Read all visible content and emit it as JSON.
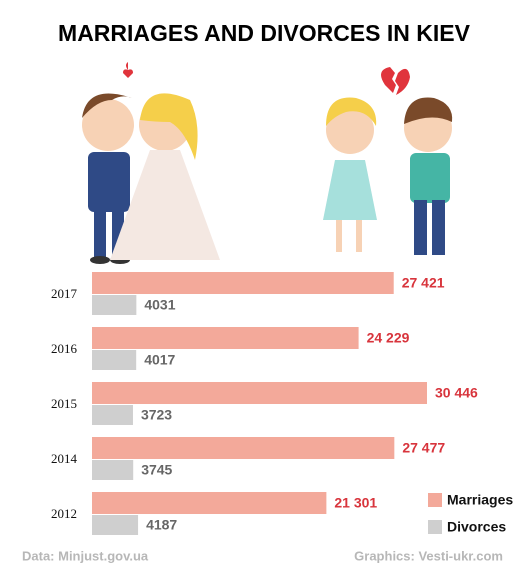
{
  "chart_data": {
    "type": "bar",
    "orientation": "horizontal",
    "title": "MARRIAGES AND DIVORCES IN KIEV",
    "categories": [
      "2017",
      "2016",
      "2015",
      "2014",
      "2012"
    ],
    "series": [
      {
        "name": "Marriages",
        "color": "#f3a99a",
        "label_color": "#d8343c",
        "values": [
          27421,
          24229,
          30446,
          27477,
          21301
        ],
        "value_labels": [
          "27 421",
          "24 229",
          "30 446",
          "27 477",
          "21 301"
        ]
      },
      {
        "name": "Divorces",
        "color": "#cfcfcf",
        "label_color": "#666666",
        "values": [
          4031,
          4017,
          3723,
          3745,
          4187
        ]
      }
    ],
    "source": "Data: Minjust.gov.ua",
    "credit": "Graphics: Vesti-ukr.com"
  }
}
